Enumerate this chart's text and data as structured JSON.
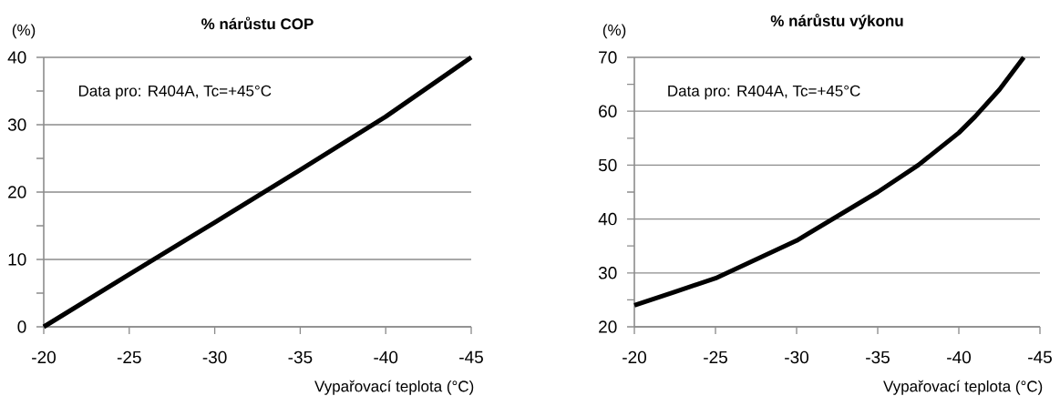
{
  "chart_data": [
    {
      "type": "line",
      "title": "% nárůstu COP",
      "xlabel": "Vypařovací teplota (°C)",
      "ylabel": "(%)",
      "annotations": [
        "Data pro: R404A, Tc=+45°C"
      ],
      "x": [
        -20,
        -25,
        -30,
        -35,
        -40,
        -45
      ],
      "values": [
        0,
        7.8,
        15.5,
        23.3,
        31.2,
        40
      ],
      "color": "#000000",
      "xlim": [
        -20,
        -45
      ],
      "ylim": [
        0,
        40
      ],
      "xticks": [
        -20,
        -25,
        -30,
        -35,
        -40,
        -45
      ],
      "yticks": [
        0,
        {
          "value": 5,
          "label": null
        },
        10,
        {
          "value": 15,
          "label": null
        },
        20,
        {
          "value": 25,
          "label": null
        },
        30,
        {
          "value": 35,
          "label": null
        },
        40
      ],
      "grid": "y"
    },
    {
      "type": "line",
      "title": "% nárůstu výkonu",
      "xlabel": "Vypařovací teplota (°C)",
      "ylabel": "(%)",
      "annotations": [
        "Data pro: R404A, Tc=+45°C"
      ],
      "x": [
        -20,
        -22.5,
        -25,
        -27.5,
        -30,
        -32.5,
        -35,
        -37.5,
        -40,
        -41,
        -42.5,
        -44
      ],
      "values": [
        24,
        26.5,
        29,
        32.5,
        36,
        40.5,
        45,
        50,
        56,
        59,
        64,
        70
      ],
      "color": "#000000",
      "xlim": [
        -20,
        -45
      ],
      "ylim": [
        20,
        70
      ],
      "xticks": [
        -20,
        -25,
        -30,
        -35,
        -40,
        -45
      ],
      "yticks": [
        20,
        {
          "value": 25,
          "label": null
        },
        30,
        {
          "value": 35,
          "label": null
        },
        40,
        {
          "value": 45,
          "label": null
        },
        50,
        {
          "value": 55,
          "label": null
        },
        60,
        {
          "value": 65,
          "label": null
        },
        70
      ],
      "grid": "y"
    }
  ]
}
